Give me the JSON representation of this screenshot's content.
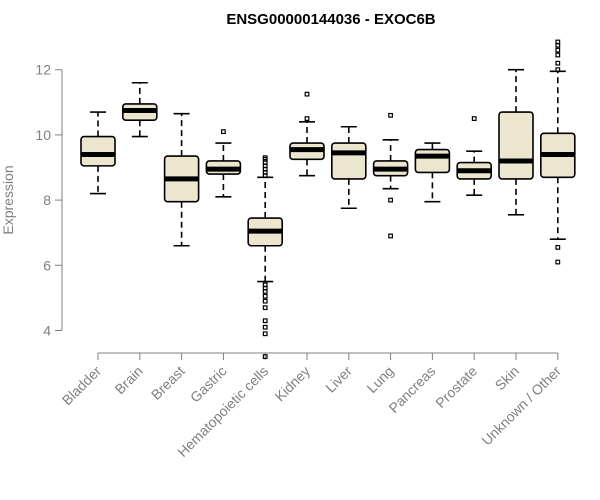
{
  "chart_data": {
    "type": "boxplot",
    "title": "ENSG00000144036 - EXOC6B",
    "xlabel": "",
    "ylabel": "Expression",
    "ylim": [
      3.0,
      13.0
    ],
    "yticks": [
      4,
      6,
      8,
      10,
      12
    ],
    "box_color": "#ede6cf",
    "categories": [
      "Bladder",
      "Brain",
      "Breast",
      "Gastric",
      "Hematopoietic cells",
      "Kidney",
      "Liver",
      "Lung",
      "Pancreas",
      "Prostate",
      "Skin",
      "Unknown / Other"
    ],
    "boxes": [
      {
        "name": "Bladder",
        "whislo": 8.2,
        "q1": 9.05,
        "med": 9.4,
        "q3": 9.95,
        "whishi": 10.7,
        "fliers": []
      },
      {
        "name": "Brain",
        "whislo": 9.95,
        "q1": 10.45,
        "med": 10.75,
        "q3": 10.95,
        "whishi": 11.6,
        "fliers": []
      },
      {
        "name": "Breast",
        "whislo": 6.6,
        "q1": 7.95,
        "med": 8.65,
        "q3": 9.35,
        "whishi": 10.65,
        "fliers": []
      },
      {
        "name": "Gastric",
        "whislo": 8.1,
        "q1": 8.8,
        "med": 8.95,
        "q3": 9.2,
        "whishi": 9.75,
        "fliers": [
          10.1
        ]
      },
      {
        "name": "Hematopoietic cells",
        "whislo": 5.5,
        "q1": 6.6,
        "med": 7.05,
        "q3": 7.45,
        "whishi": 8.7,
        "fliers": [
          3.2,
          3.9,
          4.1,
          4.3,
          4.7,
          4.9,
          5.05,
          5.2,
          5.3,
          5.4,
          8.75,
          8.85,
          8.95,
          9.05,
          9.15,
          9.25,
          9.3
        ]
      },
      {
        "name": "Kidney",
        "whislo": 8.75,
        "q1": 9.25,
        "med": 9.55,
        "q3": 9.75,
        "whishi": 10.4,
        "fliers": [
          10.5,
          11.25
        ]
      },
      {
        "name": "Liver",
        "whislo": 7.75,
        "q1": 8.65,
        "med": 9.45,
        "q3": 9.75,
        "whishi": 10.25,
        "fliers": []
      },
      {
        "name": "Lung",
        "whislo": 8.35,
        "q1": 8.75,
        "med": 8.95,
        "q3": 9.2,
        "whishi": 9.85,
        "fliers": [
          6.9,
          8.0,
          10.6
        ]
      },
      {
        "name": "Pancreas",
        "whislo": 7.95,
        "q1": 8.85,
        "med": 9.35,
        "q3": 9.55,
        "whishi": 9.75,
        "fliers": []
      },
      {
        "name": "Prostate",
        "whislo": 8.15,
        "q1": 8.65,
        "med": 8.9,
        "q3": 9.15,
        "whishi": 9.5,
        "fliers": [
          10.5
        ]
      },
      {
        "name": "Skin",
        "whislo": 7.55,
        "q1": 8.65,
        "med": 9.2,
        "q3": 10.7,
        "whishi": 12.0,
        "fliers": []
      },
      {
        "name": "Unknown / Other",
        "whislo": 6.8,
        "q1": 8.7,
        "med": 9.4,
        "q3": 10.05,
        "whishi": 11.95,
        "fliers": [
          6.1,
          6.55,
          12.0,
          12.2,
          12.45,
          12.6,
          12.75,
          12.85
        ]
      }
    ]
  }
}
